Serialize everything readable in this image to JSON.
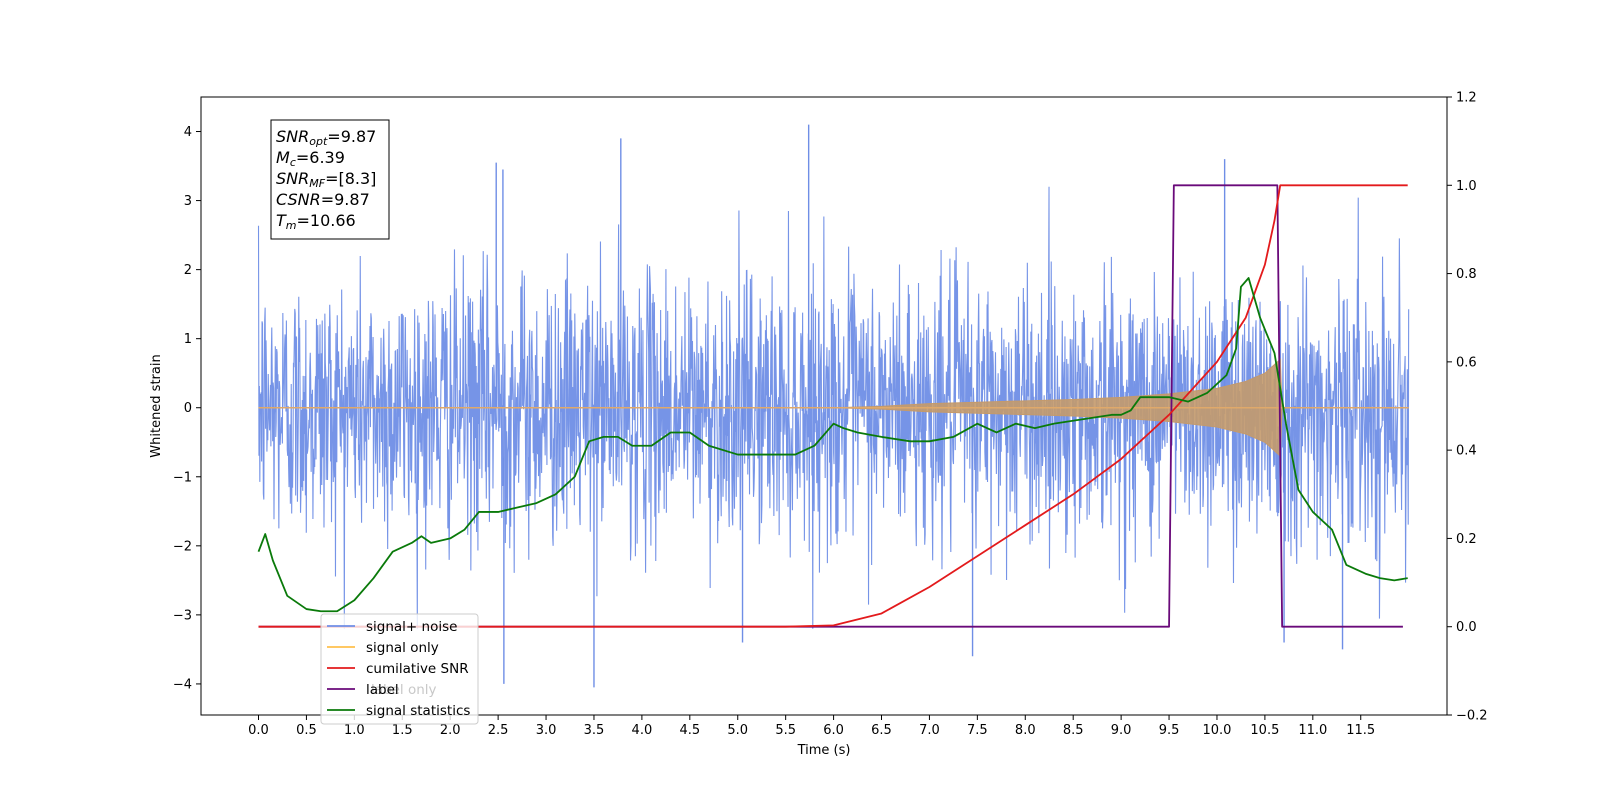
{
  "chart_data": {
    "type": "line",
    "xlabel": "Time (s)",
    "ylabel_left": "Whitened strain",
    "xlim": [
      -0.6,
      12.4
    ],
    "ylim_left": [
      -4.45,
      4.5
    ],
    "ylim_right": [
      -0.2,
      1.2
    ],
    "x_ticks": [
      0.0,
      0.5,
      1.0,
      1.5,
      2.0,
      2.5,
      3.0,
      3.5,
      4.0,
      4.5,
      5.0,
      5.5,
      6.0,
      6.5,
      7.0,
      7.5,
      8.0,
      8.5,
      9.0,
      9.5,
      10.0,
      10.5,
      11.0,
      11.5
    ],
    "x_tick_labels": [
      "0.0",
      "0.5",
      "1.0",
      "1.5",
      "2.0",
      "2.5",
      "3.0",
      "3.5",
      "4.0",
      "4.5",
      "5.0",
      "5.5",
      "6.0",
      "6.5",
      "7.0",
      "7.5",
      "8.0",
      "8.5",
      "9.0",
      "9.5",
      "10.0",
      "10.5",
      "11.0",
      "11.5"
    ],
    "y_ticks_left": [
      -4,
      -3,
      -2,
      -1,
      0,
      1,
      2,
      3,
      4
    ],
    "y_tick_labels_left": [
      "−4",
      "−3",
      "−2",
      "−1",
      "0",
      "1",
      "2",
      "3",
      "4"
    ],
    "y_ticks_right": [
      -0.2,
      0.0,
      0.2,
      0.4,
      0.6,
      0.8,
      1.0,
      1.2
    ],
    "y_tick_labels_right": [
      "−0.2",
      "0.0",
      "0.2",
      "0.4",
      "0.6",
      "0.8",
      "1.0",
      "1.2"
    ],
    "grid": false,
    "legend_position": "lower-left",
    "info_box": {
      "lines": [
        {
          "base": "SNR",
          "sub": "opt",
          "value": "=9.87"
        },
        {
          "base": "M",
          "sub": "c",
          "value": "=6.39"
        },
        {
          "base": "SNR",
          "sub": "MF",
          "value": "=[8.3]"
        },
        {
          "base": "CSNR",
          "sub": "",
          "value": "=9.87"
        },
        {
          "base": "T",
          "sub": "m",
          "value": "=10.66"
        }
      ]
    },
    "series": [
      {
        "name": "signal+ noise",
        "axis": "left",
        "color": "#6f8ee6",
        "style": "dense noise trace",
        "x_range": [
          0.0,
          12.0
        ],
        "typical_band": [
          -1.9,
          2.0
        ],
        "peaks": [
          {
            "x": 5.74,
            "y": 4.1
          },
          {
            "x": 3.78,
            "y": 3.9
          },
          {
            "x": 10.08,
            "y": 3.6
          },
          {
            "x": 2.48,
            "y": 3.55
          },
          {
            "x": 2.55,
            "y": 3.45
          },
          {
            "x": 3.5,
            "y": -4.05
          },
          {
            "x": 2.56,
            "y": -4.0
          },
          {
            "x": 10.7,
            "y": -3.4
          },
          {
            "x": 5.05,
            "y": -3.4
          },
          {
            "x": 11.31,
            "y": -3.5
          },
          {
            "x": 7.45,
            "y": -3.6
          }
        ]
      },
      {
        "name": "signal only",
        "axis": "left",
        "color": "#c49a6c",
        "style": "chirp envelope",
        "points": [
          [
            0.0,
            0.0
          ],
          [
            6.0,
            0.0
          ],
          [
            6.5,
            0.02
          ],
          [
            7.0,
            0.06
          ],
          [
            7.5,
            0.08
          ],
          [
            8.0,
            0.1
          ],
          [
            8.5,
            0.12
          ],
          [
            9.0,
            0.15
          ],
          [
            9.5,
            0.2
          ],
          [
            10.0,
            0.28
          ],
          [
            10.3,
            0.38
          ],
          [
            10.5,
            0.5
          ],
          [
            10.62,
            0.65
          ],
          [
            10.66,
            0.7
          ],
          [
            10.68,
            0.0
          ],
          [
            12.0,
            0.0
          ]
        ]
      },
      {
        "name": "cumilative SNR",
        "axis": "right",
        "color": "#e31a1c",
        "points": [
          [
            0.0,
            0.0
          ],
          [
            5.5,
            0.0
          ],
          [
            6.0,
            0.003
          ],
          [
            6.5,
            0.03
          ],
          [
            7.0,
            0.09
          ],
          [
            7.5,
            0.16
          ],
          [
            8.0,
            0.23
          ],
          [
            8.5,
            0.3
          ],
          [
            9.0,
            0.38
          ],
          [
            9.5,
            0.48
          ],
          [
            10.0,
            0.6
          ],
          [
            10.3,
            0.7
          ],
          [
            10.5,
            0.82
          ],
          [
            10.6,
            0.92
          ],
          [
            10.66,
            1.0
          ],
          [
            11.99,
            1.0
          ]
        ]
      },
      {
        "name": "label",
        "axis": "right",
        "color": "#6a0a7a",
        "points": [
          [
            0.0,
            0.0
          ],
          [
            9.5,
            0.0
          ],
          [
            9.55,
            1.0
          ],
          [
            10.63,
            1.0
          ],
          [
            10.68,
            0.0
          ],
          [
            11.94,
            0.0
          ]
        ]
      },
      {
        "name": "label only",
        "axis": "right",
        "color": "#b8a0c8",
        "hidden_in_plot": true
      },
      {
        "name": "signal statistics",
        "axis": "right",
        "color": "#0a7a0a",
        "points": [
          [
            0.0,
            0.17
          ],
          [
            0.07,
            0.21
          ],
          [
            0.15,
            0.15
          ],
          [
            0.3,
            0.07
          ],
          [
            0.5,
            0.04
          ],
          [
            0.65,
            0.035
          ],
          [
            0.82,
            0.035
          ],
          [
            1.0,
            0.06
          ],
          [
            1.2,
            0.11
          ],
          [
            1.4,
            0.17
          ],
          [
            1.6,
            0.19
          ],
          [
            1.7,
            0.205
          ],
          [
            1.8,
            0.19
          ],
          [
            2.0,
            0.2
          ],
          [
            2.15,
            0.22
          ],
          [
            2.3,
            0.26
          ],
          [
            2.5,
            0.26
          ],
          [
            2.7,
            0.27
          ],
          [
            2.9,
            0.28
          ],
          [
            3.1,
            0.3
          ],
          [
            3.3,
            0.34
          ],
          [
            3.45,
            0.42
          ],
          [
            3.6,
            0.43
          ],
          [
            3.75,
            0.43
          ],
          [
            3.9,
            0.41
          ],
          [
            4.1,
            0.41
          ],
          [
            4.3,
            0.44
          ],
          [
            4.5,
            0.44
          ],
          [
            4.7,
            0.41
          ],
          [
            5.0,
            0.39
          ],
          [
            5.3,
            0.39
          ],
          [
            5.6,
            0.39
          ],
          [
            5.8,
            0.41
          ],
          [
            6.0,
            0.46
          ],
          [
            6.1,
            0.45
          ],
          [
            6.25,
            0.44
          ],
          [
            6.5,
            0.43
          ],
          [
            6.8,
            0.42
          ],
          [
            7.0,
            0.42
          ],
          [
            7.25,
            0.43
          ],
          [
            7.5,
            0.46
          ],
          [
            7.7,
            0.44
          ],
          [
            7.9,
            0.46
          ],
          [
            8.1,
            0.45
          ],
          [
            8.3,
            0.46
          ],
          [
            8.6,
            0.47
          ],
          [
            8.9,
            0.48
          ],
          [
            9.0,
            0.48
          ],
          [
            9.1,
            0.49
          ],
          [
            9.2,
            0.52
          ],
          [
            9.3,
            0.52
          ],
          [
            9.5,
            0.52
          ],
          [
            9.7,
            0.51
          ],
          [
            9.9,
            0.53
          ],
          [
            10.1,
            0.57
          ],
          [
            10.2,
            0.63
          ],
          [
            10.25,
            0.77
          ],
          [
            10.33,
            0.79
          ],
          [
            10.45,
            0.7
          ],
          [
            10.6,
            0.62
          ],
          [
            10.72,
            0.46
          ],
          [
            10.85,
            0.31
          ],
          [
            11.0,
            0.26
          ],
          [
            11.2,
            0.22
          ],
          [
            11.35,
            0.14
          ],
          [
            11.55,
            0.12
          ],
          [
            11.7,
            0.11
          ],
          [
            11.85,
            0.105
          ],
          [
            11.99,
            0.11
          ]
        ]
      }
    ]
  }
}
